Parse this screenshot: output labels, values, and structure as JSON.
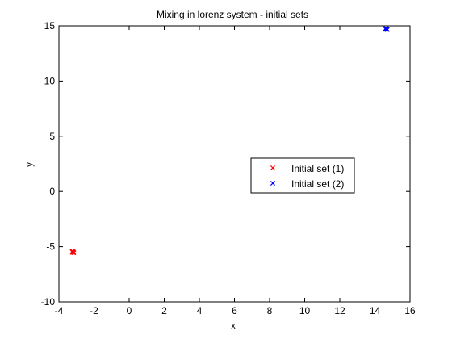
{
  "chart_data": {
    "type": "scatter",
    "title": "Mixing in lorenz system - initial sets",
    "xlabel": "x",
    "ylabel": "y",
    "xlim": [
      -4,
      16
    ],
    "ylim": [
      -10,
      15
    ],
    "xticks": [
      -4,
      -2,
      0,
      2,
      4,
      6,
      8,
      10,
      12,
      14,
      16
    ],
    "yticks": [
      -10,
      -5,
      0,
      5,
      10,
      15
    ],
    "grid": false,
    "legend_position": "center-right",
    "series": [
      {
        "name": "Initial set (1)",
        "marker": "x",
        "color": "#ff0000",
        "points": [
          {
            "x": -3.25,
            "y": -5.45
          },
          {
            "x": -3.2,
            "y": -5.5
          },
          {
            "x": -3.15,
            "y": -5.55
          },
          {
            "x": -3.22,
            "y": -5.52
          },
          {
            "x": -3.18,
            "y": -5.48
          },
          {
            "x": -3.2,
            "y": -5.45
          }
        ]
      },
      {
        "name": "Initial set (2)",
        "marker": "x",
        "color": "#0000ff",
        "points": [
          {
            "x": 14.6,
            "y": 14.75
          },
          {
            "x": 14.65,
            "y": 14.7
          },
          {
            "x": 14.7,
            "y": 14.65
          },
          {
            "x": 14.62,
            "y": 14.68
          },
          {
            "x": 14.68,
            "y": 14.72
          },
          {
            "x": 14.65,
            "y": 14.75
          }
        ]
      }
    ]
  }
}
